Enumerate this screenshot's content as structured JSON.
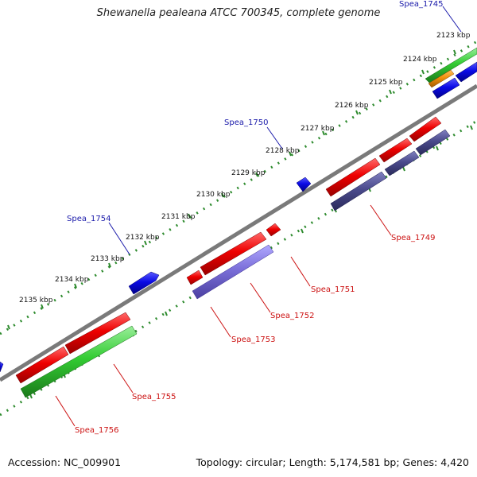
{
  "title": "Shewanella pealeana ATCC 700345, complete genome",
  "footer": {
    "accession": "Accession: NC_009901",
    "summary": "Topology: circular; Length: 5,174,581 bp; Genes: 4,420"
  },
  "colors": {
    "backbone": "#808080",
    "ruler_dots": "#2e8b2e",
    "gene_red": "#ee0000",
    "gene_blue": "#0a0ae6",
    "gene_green": "#33cc33",
    "gene_purple_dark": "#4a4a8c",
    "gene_purple_light": "#7b6fd9",
    "gene_orange": "#f0900a",
    "label_blue": "#1a1aaa",
    "label_red": "#cc1111"
  },
  "ruler_labels": [
    "2123 kbp",
    "2124 kbp",
    "2125 kbp",
    "2126 kbp",
    "2127 kbp",
    "2128 kbp",
    "2129 kbp",
    "2130 kbp",
    "2131 kbp",
    "2132 kbp",
    "2133 kbp",
    "2134 kbp",
    "2135 kbp"
  ],
  "gene_labels": {
    "spea_1745": "Spea_1745",
    "spea_1749": "Spea_1749",
    "spea_1750": "Spea_1750",
    "spea_1751": "Spea_1751",
    "spea_1752": "Spea_1752",
    "spea_1753": "Spea_1753",
    "spea_1754": "Spea_1754",
    "spea_1755": "Spea_1755",
    "spea_1756": "Spea_1756"
  }
}
